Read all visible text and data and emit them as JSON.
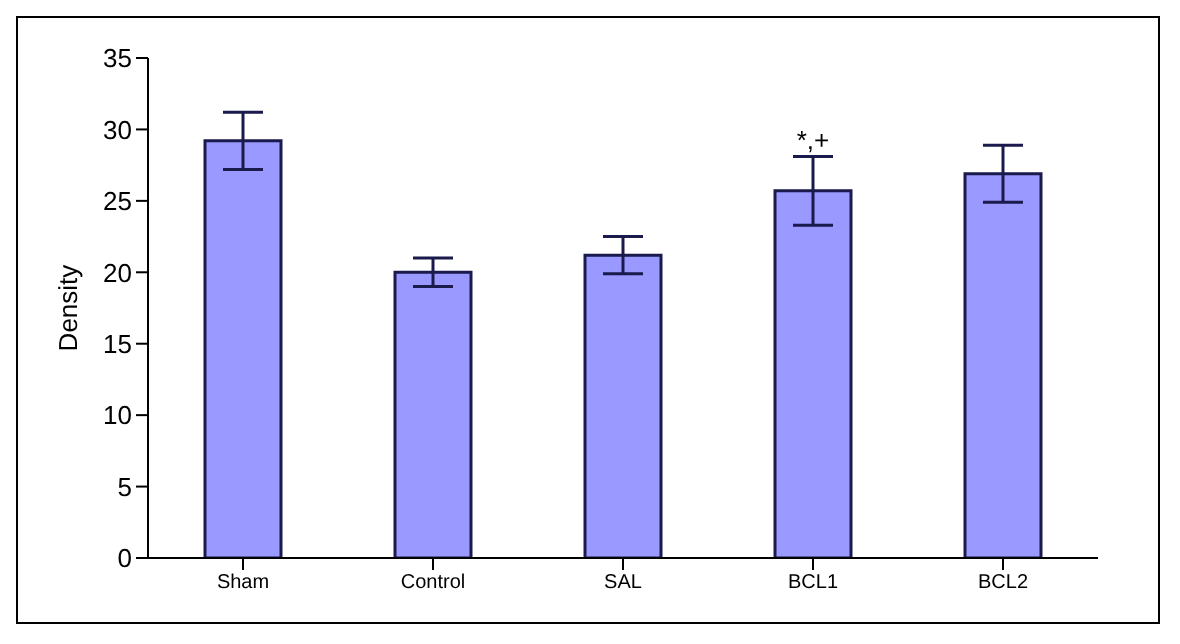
{
  "chart_data": {
    "type": "bar",
    "ylabel": "Density",
    "categories": [
      "Sham",
      "Control",
      "SAL",
      "BCL1",
      "BCL2"
    ],
    "values": [
      29.2,
      20.0,
      21.2,
      25.7,
      26.9
    ],
    "errors": [
      2.0,
      1.0,
      1.3,
      2.4,
      2.0
    ],
    "color": "#9999ff",
    "ylim": [
      0,
      35
    ],
    "yticks": [
      0,
      5,
      10,
      15,
      20,
      25,
      30,
      35
    ],
    "grid": false,
    "annotations": [
      {
        "text": "*,+",
        "x": "BCL1",
        "y": 28.1
      }
    ]
  }
}
